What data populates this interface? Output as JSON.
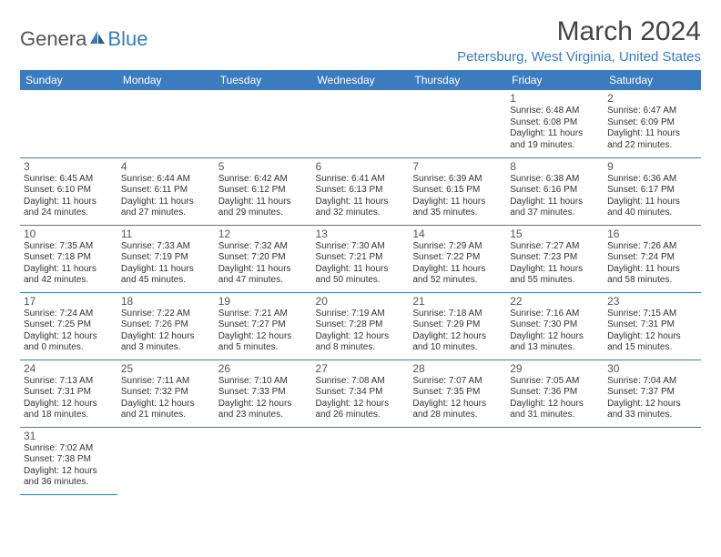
{
  "logo": {
    "part1": "Genera",
    "part2": "Blue"
  },
  "title": {
    "month": "March 2024",
    "location": "Petersburg, West Virginia, United States"
  },
  "colors": {
    "accent": "#3b7bbf",
    "header_text": "#ffffff",
    "body_text": "#333333",
    "background": "#ffffff"
  },
  "typography": {
    "title_fontsize_pt": 22,
    "location_fontsize_pt": 12,
    "dayheader_fontsize_pt": 9,
    "cell_fontsize_pt": 8
  },
  "calendar": {
    "columns": 7,
    "rows": 6,
    "first_weekday": "Sunday",
    "first_day_column_index": 5,
    "days_in_month": 31,
    "day_headers": [
      "Sunday",
      "Monday",
      "Tuesday",
      "Wednesday",
      "Thursday",
      "Friday",
      "Saturday"
    ],
    "days": [
      {
        "n": 1,
        "sunrise": "6:48 AM",
        "sunset": "6:08 PM",
        "daylight": "11 hours and 19 minutes."
      },
      {
        "n": 2,
        "sunrise": "6:47 AM",
        "sunset": "6:09 PM",
        "daylight": "11 hours and 22 minutes."
      },
      {
        "n": 3,
        "sunrise": "6:45 AM",
        "sunset": "6:10 PM",
        "daylight": "11 hours and 24 minutes."
      },
      {
        "n": 4,
        "sunrise": "6:44 AM",
        "sunset": "6:11 PM",
        "daylight": "11 hours and 27 minutes."
      },
      {
        "n": 5,
        "sunrise": "6:42 AM",
        "sunset": "6:12 PM",
        "daylight": "11 hours and 29 minutes."
      },
      {
        "n": 6,
        "sunrise": "6:41 AM",
        "sunset": "6:13 PM",
        "daylight": "11 hours and 32 minutes."
      },
      {
        "n": 7,
        "sunrise": "6:39 AM",
        "sunset": "6:15 PM",
        "daylight": "11 hours and 35 minutes."
      },
      {
        "n": 8,
        "sunrise": "6:38 AM",
        "sunset": "6:16 PM",
        "daylight": "11 hours and 37 minutes."
      },
      {
        "n": 9,
        "sunrise": "6:36 AM",
        "sunset": "6:17 PM",
        "daylight": "11 hours and 40 minutes."
      },
      {
        "n": 10,
        "sunrise": "7:35 AM",
        "sunset": "7:18 PM",
        "daylight": "11 hours and 42 minutes."
      },
      {
        "n": 11,
        "sunrise": "7:33 AM",
        "sunset": "7:19 PM",
        "daylight": "11 hours and 45 minutes."
      },
      {
        "n": 12,
        "sunrise": "7:32 AM",
        "sunset": "7:20 PM",
        "daylight": "11 hours and 47 minutes."
      },
      {
        "n": 13,
        "sunrise": "7:30 AM",
        "sunset": "7:21 PM",
        "daylight": "11 hours and 50 minutes."
      },
      {
        "n": 14,
        "sunrise": "7:29 AM",
        "sunset": "7:22 PM",
        "daylight": "11 hours and 52 minutes."
      },
      {
        "n": 15,
        "sunrise": "7:27 AM",
        "sunset": "7:23 PM",
        "daylight": "11 hours and 55 minutes."
      },
      {
        "n": 16,
        "sunrise": "7:26 AM",
        "sunset": "7:24 PM",
        "daylight": "11 hours and 58 minutes."
      },
      {
        "n": 17,
        "sunrise": "7:24 AM",
        "sunset": "7:25 PM",
        "daylight": "12 hours and 0 minutes."
      },
      {
        "n": 18,
        "sunrise": "7:22 AM",
        "sunset": "7:26 PM",
        "daylight": "12 hours and 3 minutes."
      },
      {
        "n": 19,
        "sunrise": "7:21 AM",
        "sunset": "7:27 PM",
        "daylight": "12 hours and 5 minutes."
      },
      {
        "n": 20,
        "sunrise": "7:19 AM",
        "sunset": "7:28 PM",
        "daylight": "12 hours and 8 minutes."
      },
      {
        "n": 21,
        "sunrise": "7:18 AM",
        "sunset": "7:29 PM",
        "daylight": "12 hours and 10 minutes."
      },
      {
        "n": 22,
        "sunrise": "7:16 AM",
        "sunset": "7:30 PM",
        "daylight": "12 hours and 13 minutes."
      },
      {
        "n": 23,
        "sunrise": "7:15 AM",
        "sunset": "7:31 PM",
        "daylight": "12 hours and 15 minutes."
      },
      {
        "n": 24,
        "sunrise": "7:13 AM",
        "sunset": "7:31 PM",
        "daylight": "12 hours and 18 minutes."
      },
      {
        "n": 25,
        "sunrise": "7:11 AM",
        "sunset": "7:32 PM",
        "daylight": "12 hours and 21 minutes."
      },
      {
        "n": 26,
        "sunrise": "7:10 AM",
        "sunset": "7:33 PM",
        "daylight": "12 hours and 23 minutes."
      },
      {
        "n": 27,
        "sunrise": "7:08 AM",
        "sunset": "7:34 PM",
        "daylight": "12 hours and 26 minutes."
      },
      {
        "n": 28,
        "sunrise": "7:07 AM",
        "sunset": "7:35 PM",
        "daylight": "12 hours and 28 minutes."
      },
      {
        "n": 29,
        "sunrise": "7:05 AM",
        "sunset": "7:36 PM",
        "daylight": "12 hours and 31 minutes."
      },
      {
        "n": 30,
        "sunrise": "7:04 AM",
        "sunset": "7:37 PM",
        "daylight": "12 hours and 33 minutes."
      },
      {
        "n": 31,
        "sunrise": "7:02 AM",
        "sunset": "7:38 PM",
        "daylight": "12 hours and 36 minutes."
      }
    ],
    "labels": {
      "sunrise": "Sunrise:",
      "sunset": "Sunset:",
      "daylight": "Daylight:"
    }
  }
}
